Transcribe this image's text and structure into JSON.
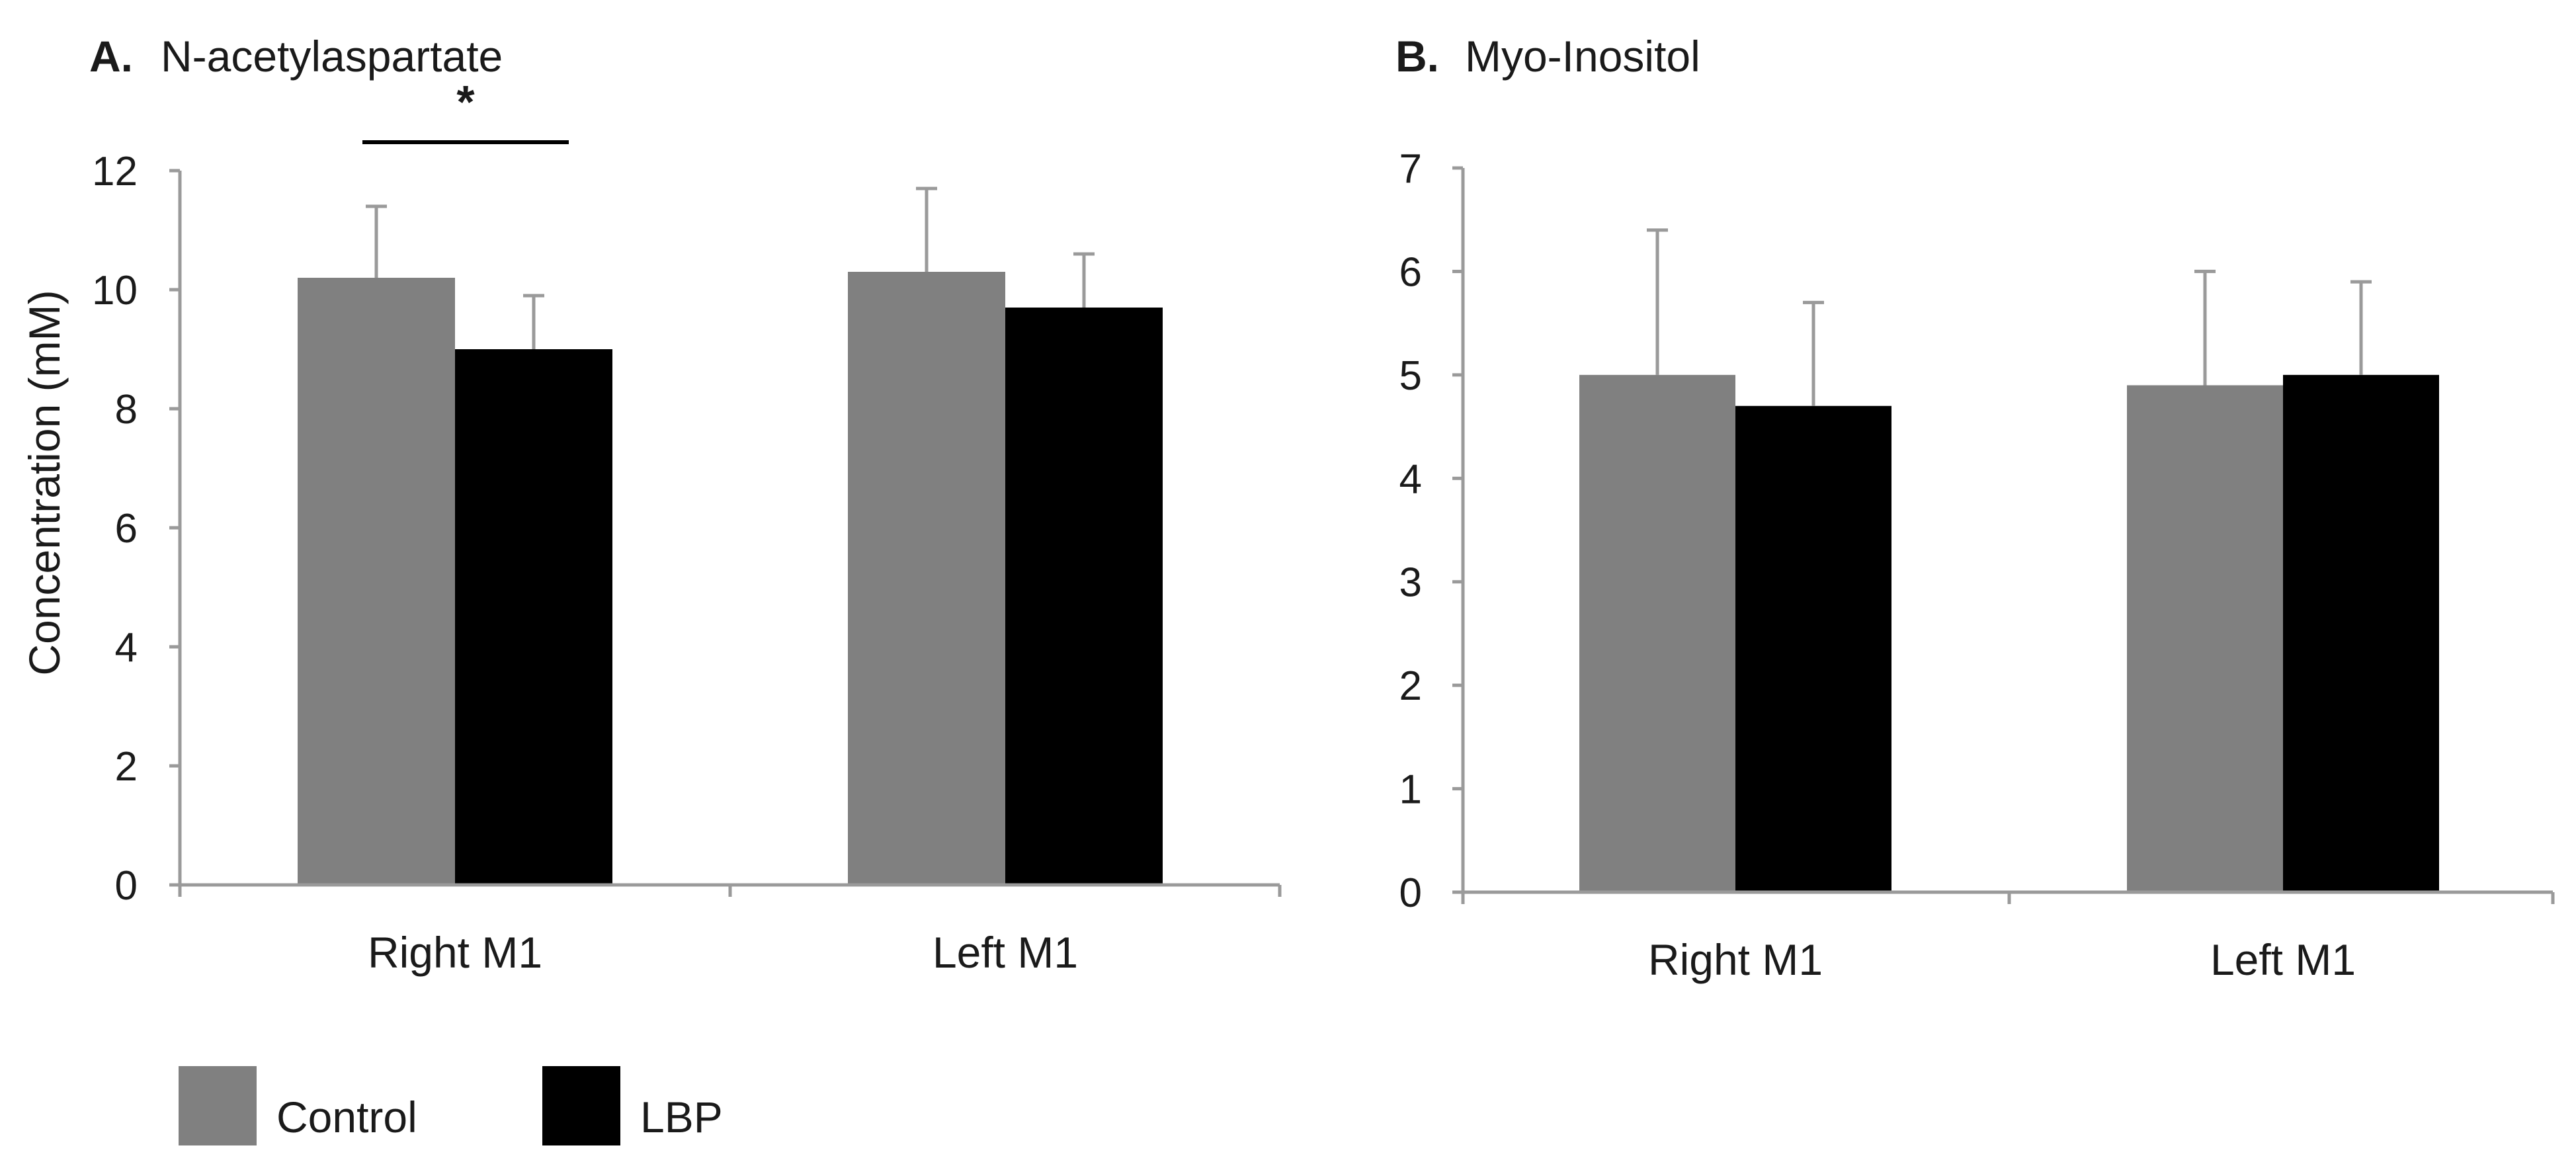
{
  "colors": {
    "control": "#808080",
    "lbp": "#000000",
    "axis": "#9a9a9a",
    "text": "#1a1a1a"
  },
  "legend": {
    "items": [
      {
        "label": "Control",
        "color": "#808080"
      },
      {
        "label": "LBP",
        "color": "#000000"
      }
    ]
  },
  "chart_data": [
    {
      "type": "bar",
      "panel_letter": "A.",
      "title": "N-acetylaspartate",
      "ylabel": "Concentration (mM)",
      "xlabel": "",
      "ylim": [
        0,
        12
      ],
      "yticks": [
        "0",
        "2",
        "4",
        "6",
        "8",
        "10",
        "12"
      ],
      "categories": [
        "Right M1",
        "Left M1"
      ],
      "series": [
        {
          "name": "Control",
          "values": [
            10.2,
            10.3
          ],
          "errors": [
            1.2,
            1.4
          ]
        },
        {
          "name": "LBP",
          "values": [
            9.0,
            9.7
          ],
          "errors": [
            0.9,
            0.9
          ]
        }
      ],
      "significance": {
        "category": "Right M1",
        "label": "*"
      },
      "grid": false
    },
    {
      "type": "bar",
      "panel_letter": "B.",
      "title": "Myo-Inositol",
      "ylabel": "",
      "xlabel": "",
      "ylim": [
        0,
        7
      ],
      "yticks": [
        "0",
        "1",
        "2",
        "3",
        "4",
        "5",
        "6",
        "7"
      ],
      "categories": [
        "Right M1",
        "Left M1"
      ],
      "series": [
        {
          "name": "Control",
          "values": [
            5.0,
            4.9
          ],
          "errors": [
            1.4,
            1.1
          ]
        },
        {
          "name": "LBP",
          "values": [
            4.7,
            5.0
          ],
          "errors": [
            1.0,
            0.9
          ]
        }
      ],
      "grid": false
    }
  ]
}
